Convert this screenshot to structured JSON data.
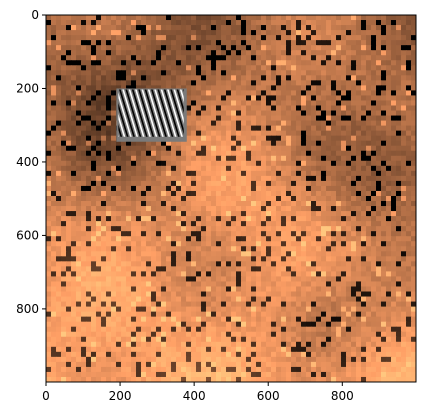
{
  "chart_data": {
    "type": "heatmap",
    "colormap": "copper",
    "xlim": [
      0,
      999
    ],
    "ylim": [
      999,
      0
    ],
    "xticks": [
      {
        "value": 0,
        "label": "0"
      },
      {
        "value": 200,
        "label": "200"
      },
      {
        "value": 400,
        "label": "400"
      },
      {
        "value": 600,
        "label": "600"
      },
      {
        "value": 800,
        "label": "800"
      }
    ],
    "yticks": [
      {
        "value": 0,
        "label": "0"
      },
      {
        "value": 200,
        "label": "200"
      },
      {
        "value": 400,
        "label": "400"
      },
      {
        "value": 600,
        "label": "600"
      },
      {
        "value": 800,
        "label": "800"
      }
    ],
    "inset": {
      "description": "grayscale diagonal stripe pattern",
      "x_range": [
        190,
        380
      ],
      "y_range": [
        200,
        345
      ]
    },
    "grid": false,
    "title": "",
    "xlabel": "",
    "ylabel": ""
  }
}
